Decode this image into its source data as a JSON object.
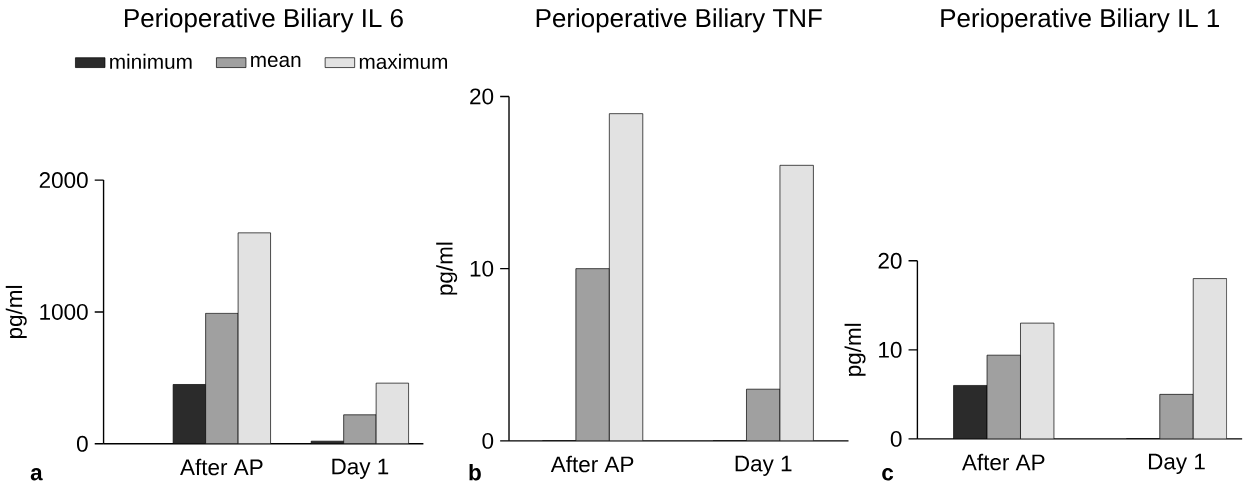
{
  "chart_data": [
    {
      "type": "bar",
      "title": "Perioperative Biliary IL 6",
      "ylabel": "pg/ml",
      "categories": [
        "After AP",
        "Day 1"
      ],
      "series": [
        {
          "name": "minimum",
          "color": "#2b2b2b",
          "values": [
            450,
            20
          ]
        },
        {
          "name": "mean",
          "color": "#a0a0a0",
          "values": [
            990,
            220
          ]
        },
        {
          "name": "maximum",
          "color": "#e2e2e2",
          "values": [
            1600,
            460
          ]
        }
      ],
      "ylim": [
        0,
        2000
      ],
      "yticks": [
        0,
        1000,
        2000
      ],
      "legend": "top",
      "annotations": [
        "a"
      ]
    },
    {
      "type": "bar",
      "title": "Perioperative Biliary TNF",
      "ylabel": "pg/ml",
      "categories": [
        "After AP",
        "Day 1"
      ],
      "series": [
        {
          "color": "#2b2b2b",
          "values": [
            0,
            0
          ]
        },
        {
          "color": "#a0a0a0",
          "values": [
            10,
            3
          ]
        },
        {
          "color": "#e2e2e2",
          "values": [
            19,
            16
          ]
        }
      ],
      "ylim": [
        0,
        20
      ],
      "yticks": [
        0,
        10,
        20
      ],
      "annotations": [
        "b"
      ]
    },
    {
      "type": "bar",
      "title": "Perioperative Biliary IL 1",
      "ylabel": "pg/ml",
      "categories": [
        "After AP",
        "Day 1"
      ],
      "series": [
        {
          "color": "#2b2b2b",
          "values": [
            6,
            0
          ]
        },
        {
          "color": "#a0a0a0",
          "values": [
            9.4,
            5
          ]
        },
        {
          "color": "#e2e2e2",
          "values": [
            13,
            18
          ]
        }
      ],
      "ylim": [
        0,
        20
      ],
      "yticks": [
        0,
        10,
        20
      ],
      "annotations": [
        "c"
      ]
    }
  ]
}
